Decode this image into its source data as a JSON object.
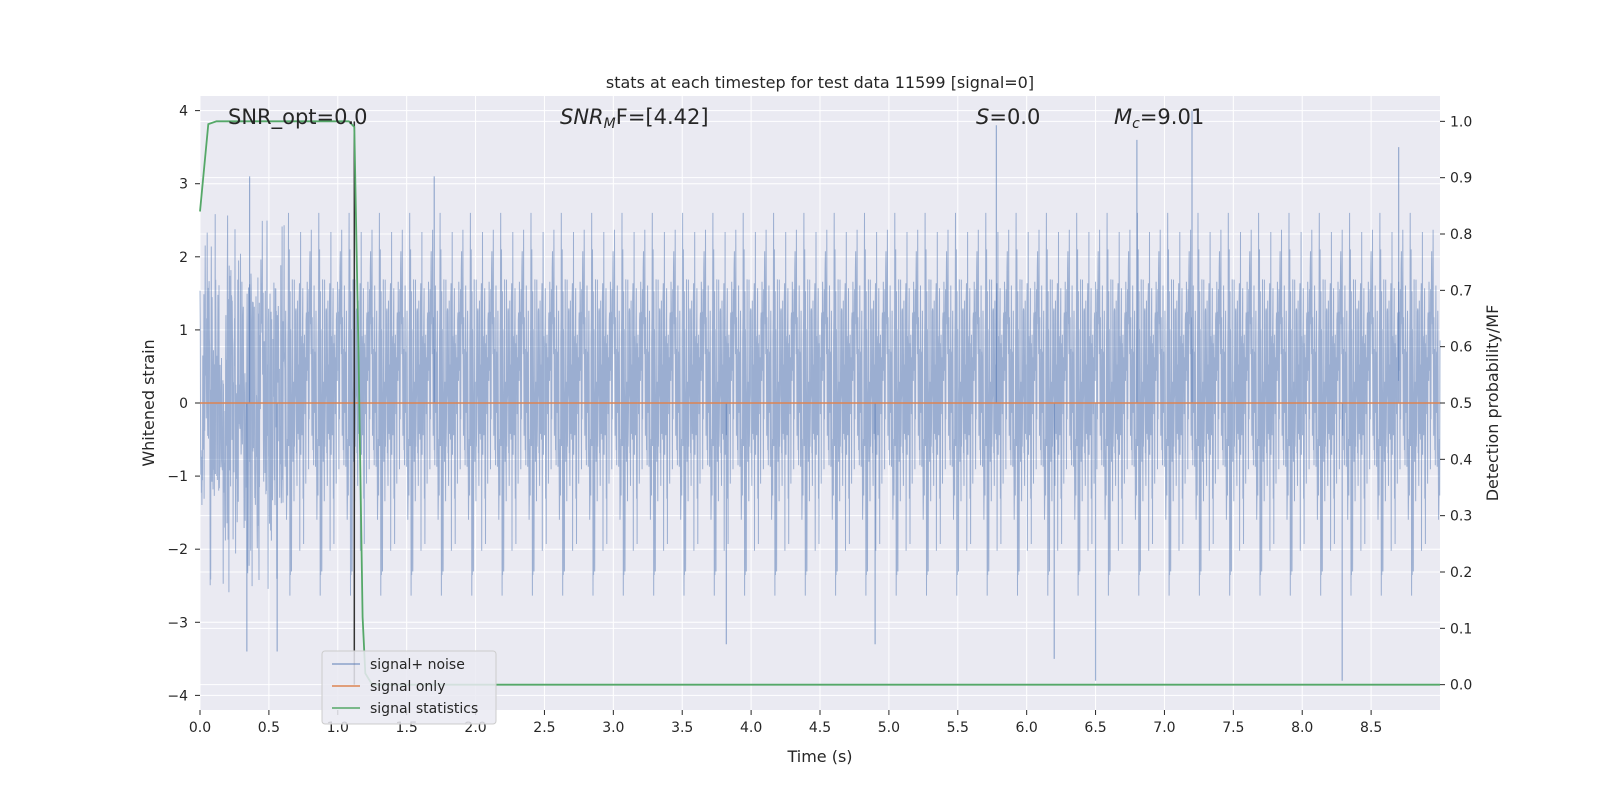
{
  "chart_data": {
    "type": "line",
    "title": "stats at each timestep for test data 11599 [signal=0]",
    "xlabel": "Time (s)",
    "ylabel": "Whitened strain",
    "y2label": "Detection probability/MF",
    "xlim": [
      0.0,
      9.0
    ],
    "ylim": [
      -4.2,
      4.2
    ],
    "y2lim": [
      -0.045,
      1.045
    ],
    "grid": true,
    "x_ticks": [
      "0.0",
      "0.5",
      "1.0",
      "1.5",
      "2.0",
      "2.5",
      "3.0",
      "3.5",
      "4.0",
      "4.5",
      "5.0",
      "5.5",
      "6.0",
      "6.5",
      "7.0",
      "7.5",
      "8.0",
      "8.5"
    ],
    "y_ticks": [
      "4",
      "3",
      "2",
      "1",
      "0",
      "−1",
      "−2",
      "−3",
      "−4"
    ],
    "y2_ticks": [
      "1.0",
      "0.9",
      "0.8",
      "0.7",
      "0.6",
      "0.5",
      "0.4",
      "0.3",
      "0.2",
      "0.1",
      "0.0"
    ],
    "annotations": {
      "snr_opt": "SNR_opt=0.0",
      "snr_mf_base": "SNR",
      "snr_mf_sub": "M",
      "snr_mf_rest": "F=[4.42]",
      "s_var": "S",
      "s_rest": "=0.0",
      "mc_base": "M",
      "mc_sub": "c",
      "mc_rest": "=9.01"
    },
    "legend": {
      "placement": "lower-left",
      "entries": [
        "signal+ noise",
        "signal only",
        "signal statistics"
      ]
    },
    "colors": {
      "noise": "#4c72b0",
      "signal": "#dd8452",
      "stats": "#55a868",
      "background": "#eaeaf2",
      "grid": "#ffffff",
      "vline": "#333333"
    },
    "series": [
      {
        "name": "signal+ noise",
        "axis": "left",
        "style": "dense-noise",
        "envelope_upper": 2.4,
        "envelope_lower": -2.4,
        "dense_band": [
          -1.4,
          1.7
        ],
        "peaks": [
          [
            0.36,
            3.1
          ],
          [
            1.7,
            3.1
          ],
          [
            5.78,
            3.8
          ],
          [
            6.8,
            3.6
          ],
          [
            7.2,
            4.0
          ],
          [
            8.7,
            3.5
          ],
          [
            0.34,
            -3.4
          ],
          [
            0.56,
            -3.4
          ],
          [
            3.82,
            -3.3
          ],
          [
            4.9,
            -3.3
          ],
          [
            6.2,
            -3.5
          ],
          [
            6.5,
            -3.8
          ],
          [
            8.29,
            -3.8
          ]
        ]
      },
      {
        "name": "signal only",
        "axis": "left",
        "x": [
          0.0,
          9.0
        ],
        "y": [
          0.0,
          0.0
        ]
      },
      {
        "name": "signal statistics",
        "axis": "right",
        "x": [
          0.0,
          0.06,
          0.12,
          0.3,
          0.6,
          0.9,
          1.08,
          1.12,
          1.15,
          1.18,
          1.2,
          1.25,
          1.5,
          2.0,
          3.0,
          4.0,
          5.0,
          6.0,
          7.0,
          8.0,
          9.0
        ],
        "y": [
          0.84,
          0.995,
          1.0,
          1.0,
          1.0,
          1.0,
          1.0,
          0.99,
          0.6,
          0.12,
          0.02,
          0.0,
          0.0,
          0.0,
          0.0,
          0.0,
          0.0,
          0.0,
          0.0,
          0.0,
          0.0
        ]
      }
    ],
    "vline_x": 1.12
  }
}
